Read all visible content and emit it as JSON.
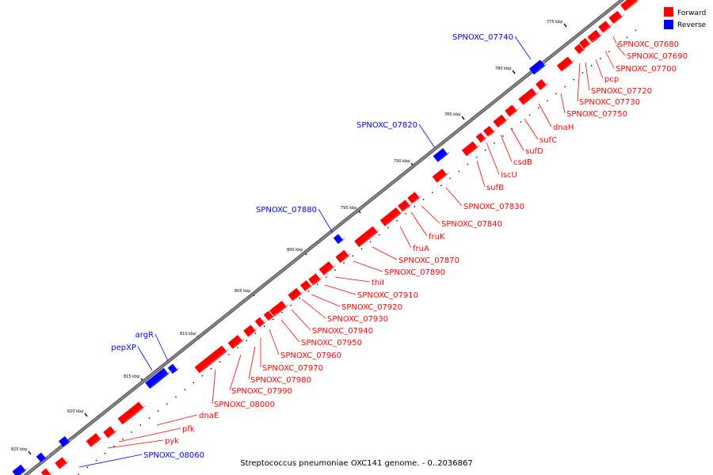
{
  "caption": "Streptococcus pneumoniae OXC141 genome. - 0..2036867",
  "legend": [
    {
      "label": "Forward",
      "color": "#ff0000"
    },
    {
      "label": "Reverse",
      "color": "#0000ff"
    }
  ],
  "colors": {
    "forward": "#ff0000",
    "reverse": "#0000ff",
    "backbone": "#7f7f7f"
  },
  "ticks": [
    {
      "label": "775 kbp"
    },
    {
      "label": "780 kbp"
    },
    {
      "label": "785 kbp"
    },
    {
      "label": "790 kbp"
    },
    {
      "label": "795 kbp"
    },
    {
      "label": "800 kbp"
    },
    {
      "label": "805 kbp"
    },
    {
      "label": "810 kbp"
    },
    {
      "label": "815 kbp"
    },
    {
      "label": "820 kbp"
    },
    {
      "label": "825 kbp"
    }
  ],
  "features": {
    "forward": [
      {
        "label": "SPNOXC_07680"
      },
      {
        "label": "SPNOXC_07690"
      },
      {
        "label": "SPNOXC_07700"
      },
      {
        "label": "pcp"
      },
      {
        "label": "SPNOXC_07720"
      },
      {
        "label": "SPNOXC_07730"
      },
      {
        "label": "SPNOXC_07750"
      },
      {
        "label": "dnaH"
      },
      {
        "label": "sufC"
      },
      {
        "label": "sufD"
      },
      {
        "label": "csdB"
      },
      {
        "label": "iscU"
      },
      {
        "label": "sufB"
      },
      {
        "label": "SPNOXC_07830"
      },
      {
        "label": "SPNOXC_07840"
      },
      {
        "label": "fruK"
      },
      {
        "label": "fruA"
      },
      {
        "label": "SPNOXC_07870"
      },
      {
        "label": "SPNOXC_07890"
      },
      {
        "label": "thiI"
      },
      {
        "label": "SPNOXC_07910"
      },
      {
        "label": "SPNOXC_07920"
      },
      {
        "label": "SPNOXC_07930"
      },
      {
        "label": "SPNOXC_07940"
      },
      {
        "label": "SPNOXC_07950"
      },
      {
        "label": "SPNOXC_07960"
      },
      {
        "label": "SPNOXC_07970"
      },
      {
        "label": "SPNOXC_07980"
      },
      {
        "label": "SPNOXC_07990"
      },
      {
        "label": "SPNOXC_08000"
      },
      {
        "label": "dnaE"
      },
      {
        "label": "pfk"
      },
      {
        "label": "pyk"
      }
    ],
    "reverse": [
      {
        "label": "SPNOXC_07740"
      },
      {
        "label": "SPNOXC_07820"
      },
      {
        "label": "SPNOXC_07880"
      },
      {
        "label": "argR"
      },
      {
        "label": "pepXP"
      },
      {
        "label": "SPNOXC_08060"
      }
    ]
  }
}
